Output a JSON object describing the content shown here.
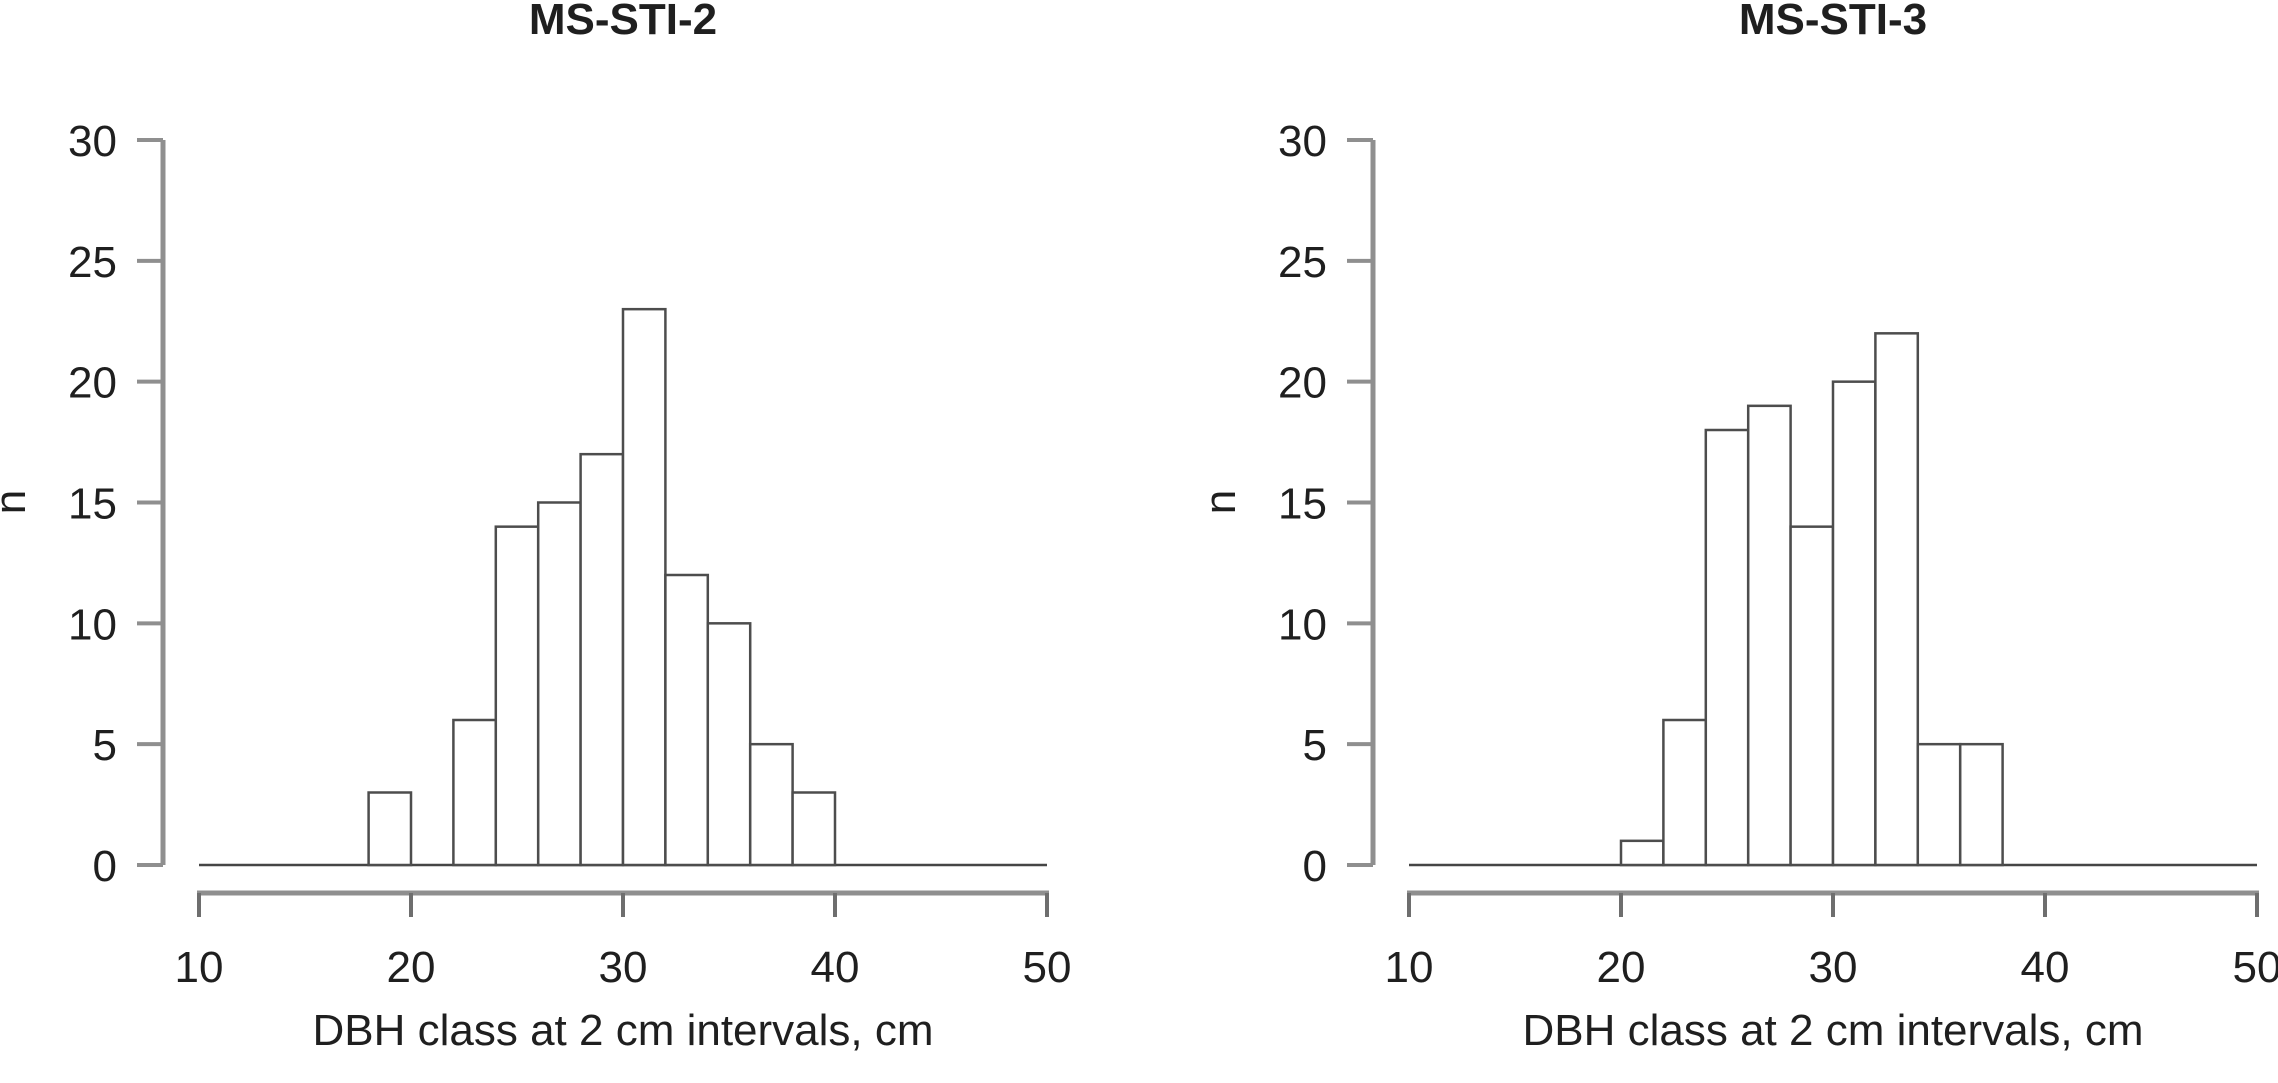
{
  "figure": {
    "background_color": "#ffffff",
    "text_color": "#1f1f1f",
    "axis_line_color": "#8f8f8f",
    "tick_color": "#6e6e6e",
    "bar_stroke_color": "#4d4d4d",
    "bar_fill_color": "#ffffff",
    "baseline_color": "#454545"
  },
  "chart_data": [
    {
      "type": "bar",
      "chart_kind": "histogram",
      "title": "MS-STI-2",
      "xlabel": "DBH class at 2 cm intervals, cm",
      "ylabel": "n",
      "xlim": [
        10,
        50
      ],
      "ylim": [
        0,
        30
      ],
      "x_ticks": [
        10,
        20,
        30,
        40,
        50
      ],
      "y_ticks": [
        0,
        5,
        10,
        15,
        20,
        25,
        30
      ],
      "grid": false,
      "legend_position": "none",
      "bin_width_cm": 2,
      "bins": [
        {
          "start": 18,
          "end": 20,
          "count": 3
        },
        {
          "start": 20,
          "end": 22,
          "count": 0
        },
        {
          "start": 22,
          "end": 24,
          "count": 6
        },
        {
          "start": 24,
          "end": 26,
          "count": 14
        },
        {
          "start": 26,
          "end": 28,
          "count": 15
        },
        {
          "start": 28,
          "end": 30,
          "count": 17
        },
        {
          "start": 30,
          "end": 32,
          "count": 23
        },
        {
          "start": 32,
          "end": 34,
          "count": 12
        },
        {
          "start": 34,
          "end": 36,
          "count": 10
        },
        {
          "start": 36,
          "end": 38,
          "count": 5
        },
        {
          "start": 38,
          "end": 40,
          "count": 3
        }
      ]
    },
    {
      "type": "bar",
      "chart_kind": "histogram",
      "title": "MS-STI-3",
      "xlabel": "DBH class at 2 cm intervals, cm",
      "ylabel": "n",
      "xlim": [
        10,
        50
      ],
      "ylim": [
        0,
        30
      ],
      "x_ticks": [
        10,
        20,
        30,
        40,
        50
      ],
      "y_ticks": [
        0,
        5,
        10,
        15,
        20,
        25,
        30
      ],
      "grid": false,
      "legend_position": "none",
      "bin_width_cm": 2,
      "bins": [
        {
          "start": 20,
          "end": 22,
          "count": 1
        },
        {
          "start": 22,
          "end": 24,
          "count": 6
        },
        {
          "start": 24,
          "end": 26,
          "count": 18
        },
        {
          "start": 26,
          "end": 28,
          "count": 19
        },
        {
          "start": 28,
          "end": 30,
          "count": 14
        },
        {
          "start": 30,
          "end": 32,
          "count": 20
        },
        {
          "start": 32,
          "end": 34,
          "count": 22
        },
        {
          "start": 34,
          "end": 36,
          "count": 5
        },
        {
          "start": 36,
          "end": 38,
          "count": 5
        }
      ]
    }
  ]
}
